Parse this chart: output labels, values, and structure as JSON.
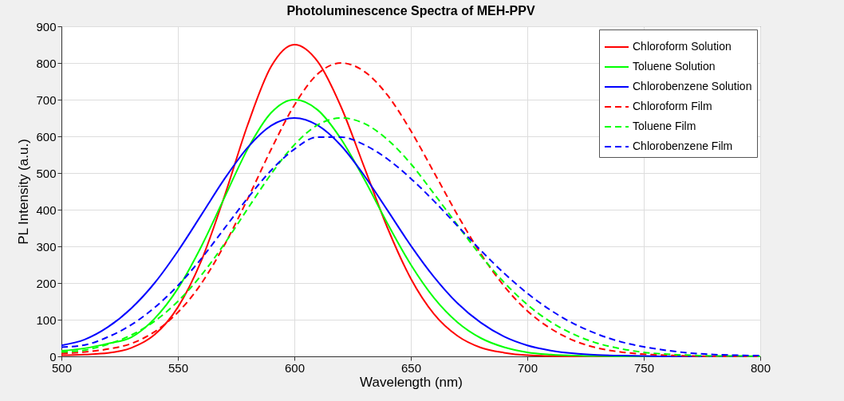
{
  "chart_data": {
    "type": "line",
    "title": "Photoluminescence Spectra of MEH-PPV",
    "xlabel": "Wavelength (nm)",
    "ylabel": "PL Intensity (a.u.)",
    "x": [
      500,
      510,
      520,
      530,
      540,
      550,
      560,
      570,
      580,
      590,
      600,
      610,
      620,
      630,
      640,
      650,
      660,
      670,
      680,
      690,
      700,
      710,
      720,
      730,
      740,
      750,
      760,
      770,
      780,
      790,
      800
    ],
    "series": [
      {
        "name": "Chloroform Solution",
        "color": "#ff0000",
        "line_style": "solid",
        "values": [
          3,
          5,
          9,
          23,
          59,
          134,
          260,
          437,
          632,
          790,
          850,
          804,
          681,
          516,
          350,
          212,
          115,
          56,
          24,
          10,
          3,
          1,
          0,
          0,
          0,
          0,
          0,
          0,
          0,
          0,
          0
        ]
      },
      {
        "name": "Toluene Solution",
        "color": "#00ff00",
        "line_style": "solid",
        "values": [
          15,
          22,
          35,
          52,
          103,
          185,
          299,
          433,
          566,
          664,
          700,
          672,
          593,
          483,
          362,
          250,
          159,
          93,
          50,
          25,
          11,
          5,
          2,
          1,
          0,
          0,
          0,
          0,
          0,
          0,
          0
        ]
      },
      {
        "name": "Chlorobenzene Solution",
        "color": "#0000ff",
        "line_style": "solid",
        "values": [
          30,
          46,
          80,
          131,
          200,
          287,
          385,
          484,
          570,
          629,
          650,
          630,
          575,
          493,
          398,
          302,
          216,
          145,
          92,
          54,
          30,
          16,
          8,
          4,
          2,
          1,
          0,
          0,
          0,
          0,
          0
        ]
      },
      {
        "name": "Chloroform Film",
        "color": "#ff0000",
        "line_style": "dashed",
        "values": [
          8,
          12,
          20,
          35,
          67,
          120,
          198,
          304,
          430,
          564,
          685,
          770,
          800,
          777,
          712,
          615,
          501,
          386,
          280,
          192,
          124,
          76,
          43,
          23,
          12,
          6,
          3,
          1,
          0,
          0,
          0
        ]
      },
      {
        "name": "Toluene Film",
        "color": "#00ff00",
        "line_style": "dashed",
        "values": [
          12,
          17,
          33,
          58,
          96,
          150,
          221,
          307,
          403,
          497,
          577,
          631,
          650,
          635,
          591,
          525,
          443,
          358,
          275,
          202,
          141,
          94,
          60,
          36,
          21,
          11,
          6,
          3,
          1,
          1,
          0
        ]
      },
      {
        "name": "Chlorobenzene Film",
        "color": "#0000ff",
        "line_style": "dashed",
        "values": [
          25,
          31,
          53,
          86,
          133,
          193,
          266,
          349,
          432,
          507,
          565,
          598,
          598,
          577,
          538,
          485,
          423,
          356,
          289,
          227,
          172,
          126,
          89,
          61,
          40,
          26,
          16,
          9,
          5,
          3,
          2
        ]
      }
    ],
    "xlim": [
      500,
      800
    ],
    "xticks": [
      500,
      550,
      600,
      650,
      700,
      750,
      800
    ],
    "ylim": [
      0,
      900
    ],
    "yticks": [
      0,
      100,
      200,
      300,
      400,
      500,
      600,
      700,
      800,
      900
    ],
    "grid": true,
    "legend": "top right",
    "marker": "none"
  }
}
